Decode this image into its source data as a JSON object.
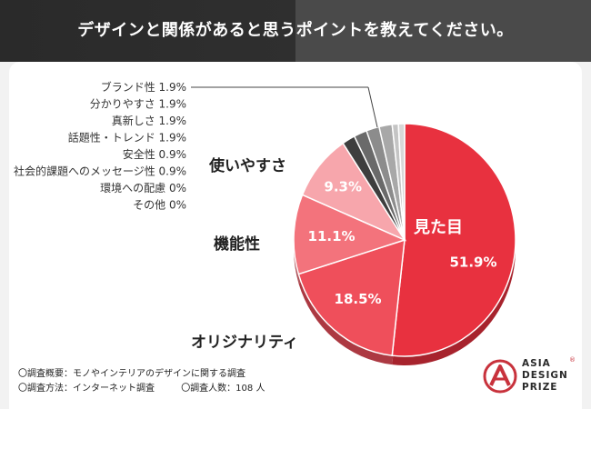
{
  "header": {
    "title": "デザインと関係があると思うポイントを教えてください。"
  },
  "chart_data": {
    "type": "pie",
    "categories": [
      "見た目",
      "オリジナリティ",
      "機能性",
      "使いやすさ",
      "ブランド性",
      "分かりやすさ",
      "真新しさ",
      "話題性・トレンド",
      "安全性",
      "社会的課題へのメッセージ性",
      "環境への配慮",
      "その他"
    ],
    "values": [
      51.9,
      18.5,
      11.1,
      9.3,
      1.9,
      1.9,
      1.9,
      1.9,
      0.9,
      0.9,
      0,
      0
    ],
    "value_labels": [
      "51.9%",
      "18.5%",
      "11.1%",
      "9.3%",
      "1.9%",
      "1.9%",
      "1.9%",
      "1.9%",
      "0.9%",
      "0.9%",
      "0%",
      "0%"
    ],
    "colors": [
      "#e8313f",
      "#ef4f5b",
      "#f3737c",
      "#f7a6ac",
      "#3e3e3e",
      "#6a6a6a",
      "#8c8c8c",
      "#a8a8a8",
      "#c4c4c4",
      "#d8d8d8",
      "#e6e6e6",
      "#eeeeee"
    ],
    "legend": [
      "ブランド性 1.9%",
      "分かりやすさ 1.9%",
      "真新しさ 1.9%",
      "話題性・トレンド 1.9%",
      "安全性 0.9%",
      "社会的課題へのメッセージ性 0.9%",
      "環境への配慮 0%",
      "その他 0%"
    ],
    "outside_labels": [
      "使いやすさ",
      "機能性",
      "オリジナリティ"
    ],
    "inside_name": "見た目"
  },
  "footnotes": {
    "line1": "〇調査概要：モノやインテリアのデザインに関する調査",
    "line2a": "〇調査方法：インターネット調査",
    "line2b": "〇調査人数：108 人"
  },
  "logo": {
    "line1": "ASIA",
    "line2": "DESIGN",
    "line3": "PRIZE",
    "reg": "®",
    "accent": "#c8323c"
  }
}
